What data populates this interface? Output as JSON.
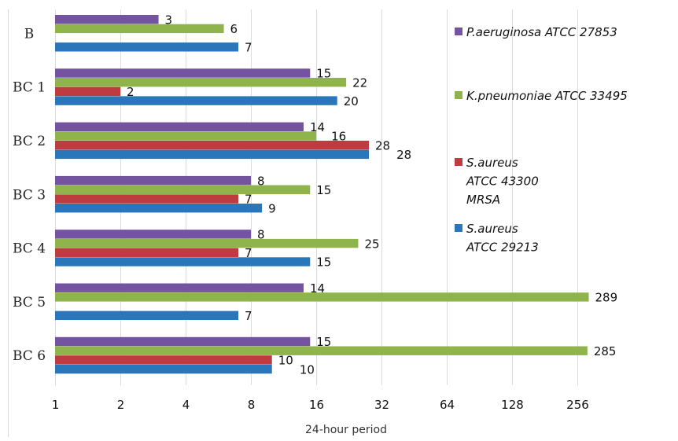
{
  "chart_data": {
    "type": "bar",
    "orientation": "horizontal",
    "title": "",
    "xlabel": "24-hour period",
    "ylabel": "",
    "x_scale": "log2",
    "xlim": [
      1,
      512
    ],
    "x_ticks": [
      "1",
      "2",
      "4",
      "8",
      "16",
      "32",
      "64",
      "128",
      "256"
    ],
    "x_tick_values": [
      1,
      2,
      4,
      8,
      16,
      32,
      64,
      128,
      256
    ],
    "grid": "vertical",
    "legend_position": "right",
    "categories": [
      "B",
      "BC 1",
      "BC 2",
      "BC 3",
      "BC 4",
      "BC 5",
      "BC 6"
    ],
    "series": [
      {
        "name": "P.aeruginosa  ATCC 27853",
        "legend_lines": [
          "P.aeruginosa  ATCC 27853"
        ],
        "color": "#7453A0",
        "values": [
          3,
          15,
          14,
          8,
          8,
          14,
          15
        ]
      },
      {
        "name": "K.pneumoniae ATCC 33495",
        "legend_lines": [
          "K.pneumoniae ATCC 33495"
        ],
        "color": "#8FB44B",
        "values": [
          6,
          22,
          16,
          15,
          25,
          289,
          285
        ]
      },
      {
        "name": "S.aureus ATCC 43300 MRSA",
        "legend_lines": [
          "S.aureus",
          "ATCC 43300",
          "MRSA"
        ],
        "color": "#BE3B40",
        "values": [
          null,
          2,
          28,
          7,
          7,
          null,
          10
        ]
      },
      {
        "name": "S.aureus ATCC 29213",
        "legend_lines": [
          "S.aureus",
          "ATCC 29213"
        ],
        "color": "#2A76BB",
        "values": [
          7,
          20,
          28,
          9,
          15,
          7,
          10
        ]
      }
    ]
  }
}
